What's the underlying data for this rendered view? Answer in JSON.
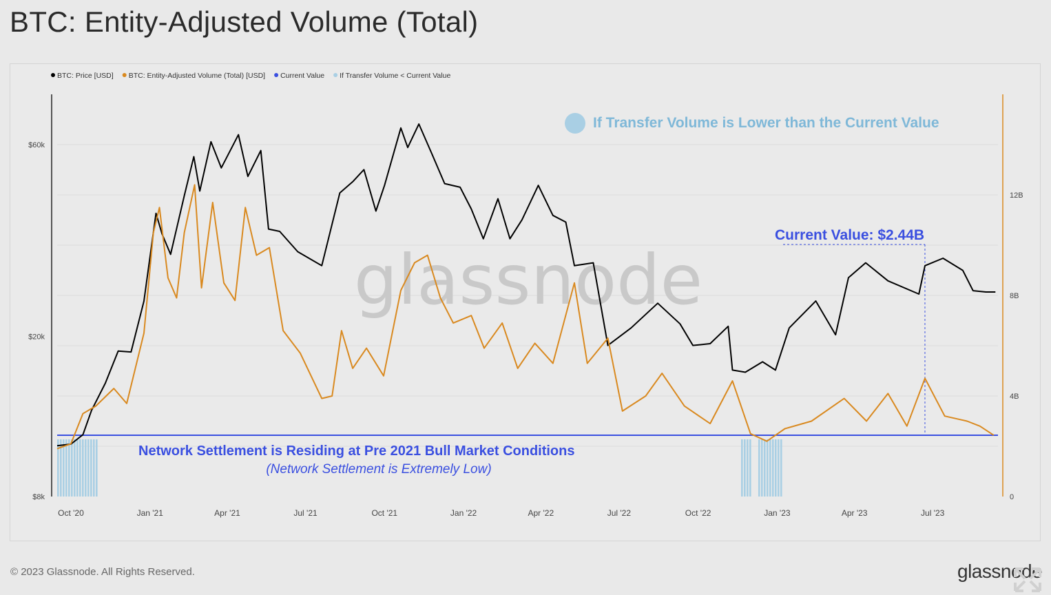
{
  "page": {
    "title": "BTC: Entity-Adjusted Volume (Total)",
    "copyright": "© 2023 Glassnode. All Rights Reserved.",
    "logo_text": "glassnode"
  },
  "colors": {
    "price": "#000000",
    "volume": "#d9891f",
    "current_value": "#3a4fe0",
    "below_current": "#a9cfe4",
    "watermark": "#c9c9c9",
    "grid": "#dcdcdc"
  },
  "chart_data": {
    "type": "line",
    "watermark": "glassnode",
    "legend": {
      "position": "top-left",
      "items": [
        {
          "label": "BTC: Price [USD]",
          "color": "#000000"
        },
        {
          "label": "BTC: Entity-Adjusted Volume (Total) [USD]",
          "color": "#d9891f"
        },
        {
          "label": "Current Value",
          "color": "#3a4fe0"
        },
        {
          "label": "If Transfer Volume < Current Value",
          "color": "#a9cfe4"
        }
      ]
    },
    "x_range": [
      "2020-09-15",
      "2023-09-15"
    ],
    "x_ticks": [
      {
        "label": "Oct '20",
        "date": "2020-10-01"
      },
      {
        "label": "Jan '21",
        "date": "2021-01-01"
      },
      {
        "label": "Apr '21",
        "date": "2021-04-01"
      },
      {
        "label": "Jul '21",
        "date": "2021-07-01"
      },
      {
        "label": "Oct '21",
        "date": "2021-10-01"
      },
      {
        "label": "Jan '22",
        "date": "2022-01-01"
      },
      {
        "label": "Apr '22",
        "date": "2022-04-01"
      },
      {
        "label": "Jul '22",
        "date": "2022-07-01"
      },
      {
        "label": "Oct '22",
        "date": "2022-10-01"
      },
      {
        "label": "Jan '23",
        "date": "2023-01-01"
      },
      {
        "label": "Apr '23",
        "date": "2023-04-01"
      },
      {
        "label": "Jul '23",
        "date": "2023-07-01"
      }
    ],
    "y_left": {
      "scale": "log",
      "range": [
        8000,
        80000
      ],
      "ticks": [
        {
          "label": "$8k",
          "value": 8000
        },
        {
          "label": "$20k",
          "value": 20000
        },
        {
          "label": "$60k",
          "value": 60000
        }
      ]
    },
    "y_right": {
      "scale": "linear",
      "range": [
        0,
        16
      ],
      "unit": "billion USD",
      "ticks": [
        {
          "label": "0",
          "value": 0
        },
        {
          "label": "4B",
          "value": 4
        },
        {
          "label": "8B",
          "value": 8
        },
        {
          "label": "12B",
          "value": 12
        }
      ]
    },
    "series": [
      {
        "name": "BTC: Price [USD]",
        "axis": "left",
        "points": [
          [
            "2020-09-15",
            10700
          ],
          [
            "2020-10-01",
            10800
          ],
          [
            "2020-10-15",
            11400
          ],
          [
            "2020-10-25",
            13100
          ],
          [
            "2020-11-10",
            15300
          ],
          [
            "2020-11-25",
            18400
          ],
          [
            "2020-12-10",
            18300
          ],
          [
            "2020-12-25",
            24500
          ],
          [
            "2021-01-08",
            40500
          ],
          [
            "2021-01-15",
            36000
          ],
          [
            "2021-01-25",
            32000
          ],
          [
            "2021-02-10",
            44800
          ],
          [
            "2021-02-21",
            56000
          ],
          [
            "2021-02-28",
            46000
          ],
          [
            "2021-03-13",
            61000
          ],
          [
            "2021-03-25",
            52500
          ],
          [
            "2021-04-14",
            63500
          ],
          [
            "2021-04-25",
            50000
          ],
          [
            "2021-05-10",
            58000
          ],
          [
            "2021-05-19",
            37000
          ],
          [
            "2021-06-01",
            36500
          ],
          [
            "2021-06-22",
            32500
          ],
          [
            "2021-07-20",
            30000
          ],
          [
            "2021-08-10",
            45500
          ],
          [
            "2021-08-25",
            48500
          ],
          [
            "2021-09-07",
            52000
          ],
          [
            "2021-09-21",
            41000
          ],
          [
            "2021-10-01",
            47500
          ],
          [
            "2021-10-20",
            66000
          ],
          [
            "2021-10-28",
            59000
          ],
          [
            "2021-11-10",
            67500
          ],
          [
            "2021-11-25",
            57000
          ],
          [
            "2021-12-10",
            48000
          ],
          [
            "2021-12-28",
            47000
          ],
          [
            "2022-01-10",
            41500
          ],
          [
            "2022-01-24",
            35000
          ],
          [
            "2022-02-10",
            44000
          ],
          [
            "2022-02-24",
            35000
          ],
          [
            "2022-03-10",
            39000
          ],
          [
            "2022-03-29",
            47500
          ],
          [
            "2022-04-15",
            40000
          ],
          [
            "2022-04-30",
            38500
          ],
          [
            "2022-05-10",
            30000
          ],
          [
            "2022-06-01",
            30500
          ],
          [
            "2022-06-18",
            19000
          ],
          [
            "2022-07-15",
            21000
          ],
          [
            "2022-08-15",
            24200
          ],
          [
            "2022-09-10",
            21500
          ],
          [
            "2022-09-25",
            19000
          ],
          [
            "2022-10-15",
            19200
          ],
          [
            "2022-11-05",
            21200
          ],
          [
            "2022-11-10",
            16500
          ],
          [
            "2022-11-25",
            16300
          ],
          [
            "2022-12-15",
            17300
          ],
          [
            "2022-12-30",
            16500
          ],
          [
            "2023-01-15",
            21000
          ],
          [
            "2023-02-15",
            24500
          ],
          [
            "2023-03-10",
            20200
          ],
          [
            "2023-03-25",
            28000
          ],
          [
            "2023-04-14",
            30500
          ],
          [
            "2023-05-10",
            27500
          ],
          [
            "2023-06-15",
            25500
          ],
          [
            "2023-06-22",
            30000
          ],
          [
            "2023-07-13",
            31300
          ],
          [
            "2023-08-05",
            29200
          ],
          [
            "2023-08-17",
            26000
          ],
          [
            "2023-09-01",
            25800
          ],
          [
            "2023-09-12",
            25800
          ]
        ]
      },
      {
        "name": "BTC: Entity-Adjusted Volume (Total) [USD]",
        "axis": "right",
        "points": [
          [
            "2020-09-15",
            1.9
          ],
          [
            "2020-10-01",
            2.1
          ],
          [
            "2020-10-15",
            3.3
          ],
          [
            "2020-10-30",
            3.6
          ],
          [
            "2020-11-20",
            4.3
          ],
          [
            "2020-12-05",
            3.7
          ],
          [
            "2020-12-25",
            6.5
          ],
          [
            "2021-01-05",
            10.5
          ],
          [
            "2021-01-12",
            11.5
          ],
          [
            "2021-01-22",
            8.7
          ],
          [
            "2021-02-01",
            7.9
          ],
          [
            "2021-02-10",
            10.5
          ],
          [
            "2021-02-22",
            12.4
          ],
          [
            "2021-03-02",
            8.3
          ],
          [
            "2021-03-15",
            11.7
          ],
          [
            "2021-03-28",
            8.5
          ],
          [
            "2021-04-10",
            7.8
          ],
          [
            "2021-04-22",
            11.5
          ],
          [
            "2021-05-05",
            9.6
          ],
          [
            "2021-05-20",
            9.9
          ],
          [
            "2021-06-05",
            6.6
          ],
          [
            "2021-06-25",
            5.7
          ],
          [
            "2021-07-20",
            3.9
          ],
          [
            "2021-08-01",
            4.0
          ],
          [
            "2021-08-12",
            6.6
          ],
          [
            "2021-08-25",
            5.1
          ],
          [
            "2021-09-10",
            5.9
          ],
          [
            "2021-09-30",
            4.8
          ],
          [
            "2021-10-20",
            8.2
          ],
          [
            "2021-11-05",
            9.3
          ],
          [
            "2021-11-20",
            9.6
          ],
          [
            "2021-12-05",
            7.9
          ],
          [
            "2021-12-20",
            6.9
          ],
          [
            "2022-01-10",
            7.2
          ],
          [
            "2022-01-25",
            5.9
          ],
          [
            "2022-02-15",
            6.9
          ],
          [
            "2022-03-05",
            5.1
          ],
          [
            "2022-03-25",
            6.1
          ],
          [
            "2022-04-15",
            5.3
          ],
          [
            "2022-05-10",
            8.5
          ],
          [
            "2022-05-25",
            5.3
          ],
          [
            "2022-06-18",
            6.3
          ],
          [
            "2022-07-05",
            3.4
          ],
          [
            "2022-08-01",
            4.0
          ],
          [
            "2022-08-20",
            4.9
          ],
          [
            "2022-09-15",
            3.6
          ],
          [
            "2022-10-15",
            2.9
          ],
          [
            "2022-11-10",
            4.6
          ],
          [
            "2022-12-01",
            2.5
          ],
          [
            "2022-12-20",
            2.2
          ],
          [
            "2023-01-10",
            2.7
          ],
          [
            "2023-02-10",
            3.0
          ],
          [
            "2023-03-20",
            3.9
          ],
          [
            "2023-04-15",
            3.0
          ],
          [
            "2023-05-10",
            4.1
          ],
          [
            "2023-06-01",
            2.8
          ],
          [
            "2023-06-22",
            4.7
          ],
          [
            "2023-07-15",
            3.2
          ],
          [
            "2023-08-10",
            3.0
          ],
          [
            "2023-08-25",
            2.8
          ],
          [
            "2023-09-10",
            2.44
          ]
        ]
      }
    ],
    "current_value": {
      "value": 2.44,
      "unit": "B",
      "label": "Current Value: $2.44B",
      "marker_date": "2023-06-22"
    },
    "below_current_periods": [
      [
        "2020-09-15",
        "2020-11-01"
      ],
      [
        "2022-11-20",
        "2022-11-30"
      ],
      [
        "2022-12-10",
        "2023-01-05"
      ]
    ],
    "annotations": {
      "legend_note": "If Transfer Volume is Lower than the Current Value",
      "main": "Network Settlement is Residing at Pre 2021 Bull Market Conditions",
      "sub": "(Network Settlement is Extremely Low)"
    }
  }
}
